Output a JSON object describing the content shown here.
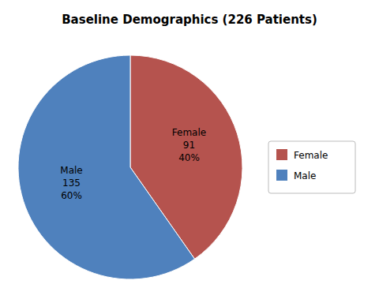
{
  "chart_data": {
    "type": "pie",
    "title": "Baseline Demographics (226 Patients)",
    "categories": [
      "Female",
      "Male"
    ],
    "values": [
      91,
      135
    ],
    "percentages": [
      {
        "value": 40,
        "label": "40%"
      },
      {
        "value": 60,
        "label": "60%"
      }
    ],
    "colors": [
      "#b5534e",
      "#4f81bd"
    ],
    "data_labels": true,
    "legend": "right"
  }
}
